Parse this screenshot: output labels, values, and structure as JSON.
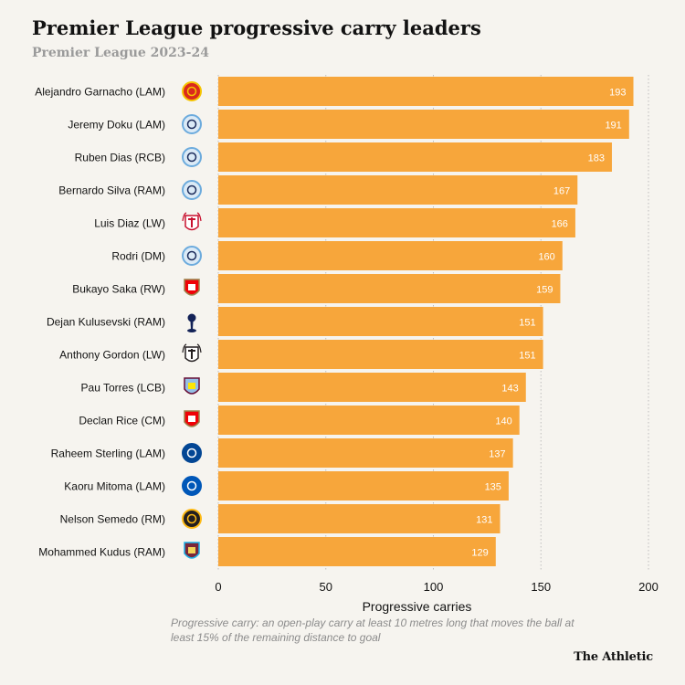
{
  "header": {
    "title": "Premier League progressive carry leaders",
    "subtitle": "Premier League 2023-24"
  },
  "colors": {
    "bar": "#f7a63b",
    "value_label": "#ffffff",
    "grid": "#bdbdbd",
    "text": "#121212"
  },
  "chart_data": {
    "type": "bar",
    "orientation": "horizontal",
    "title": "Premier League progressive carry leaders",
    "subtitle": "Premier League 2023-24",
    "xlabel": "Progressive carries",
    "ylabel": "",
    "xlim": [
      0,
      200
    ],
    "xticks": [
      0,
      50,
      100,
      150,
      200
    ],
    "grid": "vertical dotted",
    "categories": [
      "Alejandro Garnacho (LAM)",
      "Jeremy Doku (LAM)",
      "Ruben Dias (RCB)",
      "Bernardo Silva (RAM)",
      "Luis Diaz (LW)",
      "Rodri (DM)",
      "Bukayo Saka (RW)",
      "Dejan Kulusevski (RAM)",
      "Anthony Gordon (LW)",
      "Pau Torres (LCB)",
      "Declan Rice (CM)",
      "Raheem Sterling (LAM)",
      "Kaoru Mitoma (LAM)",
      "Nelson Semedo (RM)",
      "Mohammed Kudus (RAM)"
    ],
    "values": [
      193,
      191,
      183,
      167,
      166,
      160,
      159,
      151,
      151,
      143,
      140,
      137,
      135,
      131,
      129
    ],
    "club_badges": [
      "manchester-united-badge-icon",
      "manchester-city-badge-icon",
      "manchester-city-badge-icon",
      "manchester-city-badge-icon",
      "liverpool-badge-icon",
      "manchester-city-badge-icon",
      "arsenal-badge-icon",
      "tottenham-badge-icon",
      "newcastle-badge-icon",
      "aston-villa-badge-icon",
      "arsenal-badge-icon",
      "chelsea-badge-icon",
      "brighton-badge-icon",
      "wolves-badge-icon",
      "west-ham-badge-icon"
    ]
  },
  "footnote": "Progressive carry: an open-play carry at least 10 metres long that moves the ball at least 15% of the remaining distance to goal",
  "brand": "The Athletic"
}
